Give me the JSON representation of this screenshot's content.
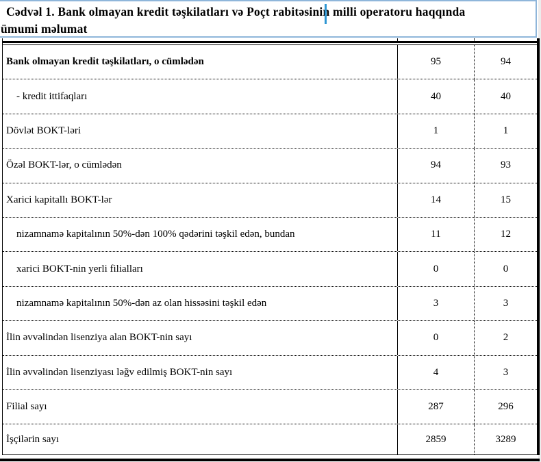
{
  "title": {
    "line1": "Cədvəl 1. Bank olmayan kredit təşkilatları və Poçt rabitəsinin milli operatoru haqqında",
    "line2": "ümumi məlumat"
  },
  "table": {
    "rows": [
      {
        "label": "Bank olmayan kredit təşkilatları, o cümlədən",
        "v1": "95",
        "v2": "94"
      },
      {
        "label": "- kredit ittifaqları",
        "v1": "40",
        "v2": "40"
      },
      {
        "label": "Dövlət BOKT-ləri",
        "v1": "1",
        "v2": "1"
      },
      {
        "label": "Özəl BOKT-lər, o cümlədən",
        "v1": "94",
        "v2": "93"
      },
      {
        "label": "Xarici kapitallı BOKT-lər",
        "v1": "14",
        "v2": "15"
      },
      {
        "label": "nizamnamə kapitalının 50%-dən 100% qədərini təşkil edən, bundan",
        "v1": "11",
        "v2": "12"
      },
      {
        "label": "xarici BOKT-nin yerli filialları",
        "v1": "0",
        "v2": "0"
      },
      {
        "label": "nizamnamə kapitalının 50%-dən az olan hissəsini  təşkil edən",
        "v1": "3",
        "v2": "3"
      },
      {
        "label": "İlin əvvəlindən lisenziya alan BOKT-nin sayı",
        "v1": "0",
        "v2": "2"
      },
      {
        "label": "İlin əvvəlindən lisenziyası ləğv edilmiş BOKT-nin sayı",
        "v1": "4",
        "v2": "3"
      },
      {
        "label": "Filial sayı",
        "v1": "287",
        "v2": "296"
      },
      {
        "label": "İşçilərin sayı",
        "v1": "2859",
        "v2": "3289"
      }
    ]
  }
}
